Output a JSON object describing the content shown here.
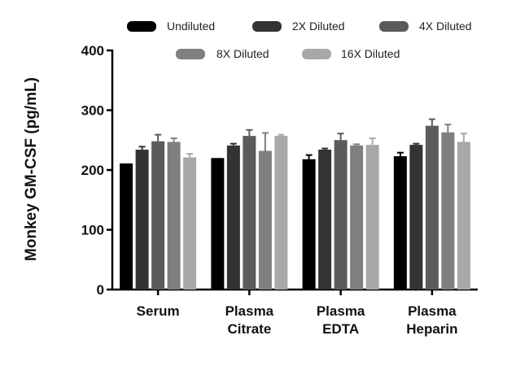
{
  "chart_data": {
    "type": "bar",
    "title": "",
    "xlabel": "",
    "ylabel": "Monkey GM-CSF (pg/mL)",
    "ylim": [
      0,
      400
    ],
    "yticks": [
      0,
      100,
      200,
      300,
      400
    ],
    "categories": [
      {
        "lines": [
          "Serum"
        ]
      },
      {
        "lines": [
          "Plasma",
          "Citrate"
        ]
      },
      {
        "lines": [
          "Plasma",
          "EDTA"
        ]
      },
      {
        "lines": [
          "Plasma",
          "Heparin"
        ]
      }
    ],
    "series": [
      {
        "name": "Undiluted",
        "color": "#000000",
        "values": [
          211,
          220,
          218,
          223
        ],
        "errors": [
          0,
          0,
          7,
          6
        ]
      },
      {
        "name": "2X Diluted",
        "color": "#333333",
        "values": [
          234,
          241,
          234,
          242
        ],
        "errors": [
          5,
          3,
          2,
          2
        ]
      },
      {
        "name": "4X Diluted",
        "color": "#5b5b5b",
        "values": [
          248,
          257,
          250,
          274
        ],
        "errors": [
          11,
          10,
          11,
          11
        ]
      },
      {
        "name": "8X Diluted",
        "color": "#7f7f7f",
        "values": [
          247,
          232,
          241,
          263
        ],
        "errors": [
          6,
          30,
          2,
          13
        ]
      },
      {
        "name": "16X Diluted",
        "color": "#a8a8a8",
        "values": [
          221,
          257,
          242,
          247
        ],
        "errors": [
          6,
          2,
          11,
          14
        ]
      }
    ],
    "legend_position": "top",
    "grid": false
  }
}
